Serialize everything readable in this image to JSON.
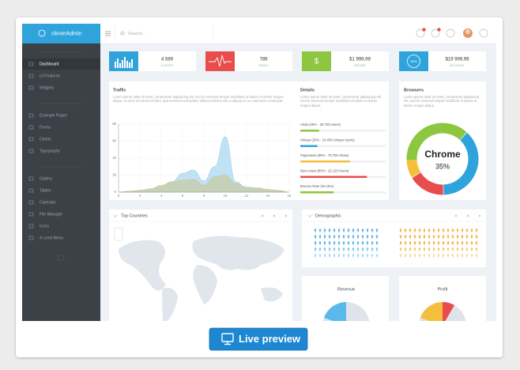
{
  "header": {
    "brand": "cleverAdmin",
    "search": "Search..."
  },
  "sidebar": {
    "groups": [
      [
        "Dashboard",
        "UI Features",
        "Widgets"
      ],
      [
        "Example Pages",
        "Forms",
        "Charts",
        "Typography"
      ],
      [
        "Gallery",
        "Tables",
        "Calendar",
        "File Manager",
        "Icons",
        "4 Level Menu"
      ]
    ]
  },
  "stats": [
    {
      "value": "4 589",
      "label": "CLIENTS"
    },
    {
      "value": "789",
      "label": "DEALS"
    },
    {
      "value": "$1 999,99",
      "label": "INCOME",
      "icon": "$"
    },
    {
      "value": "$19 999,99",
      "label": "ACCOUNT",
      "icon": "50%"
    }
  ],
  "traffic": {
    "title": "Traffic",
    "text": "Lorem ipsum dolor sit amet, consectetur adipisicing elit, sed do eiusmod tempor incididunt ut labore et dolore magna aliqua. Ut enim ad minim veniam, quis nostrud exercitation ullamco laboris nisi ut aliquip ex ea commodo consequat.",
    "chart": {
      "type": "area",
      "x": [
        0,
        1,
        2,
        3,
        4,
        5,
        6,
        7,
        8,
        9,
        10,
        11,
        12,
        13,
        14,
        15,
        16
      ],
      "series": [
        {
          "color": "#9fd3f0",
          "values": [
            0,
            1,
            2,
            3,
            6,
            12,
            22,
            26,
            13,
            30,
            65,
            12,
            5,
            4,
            3,
            2,
            0
          ]
        },
        {
          "color": "#c9c79a",
          "values": [
            0,
            1,
            2,
            4,
            8,
            12,
            14,
            15,
            8,
            18,
            20,
            10,
            6,
            5,
            3,
            2,
            0
          ]
        }
      ],
      "xlim": [
        0,
        16
      ],
      "ylim": [
        0,
        80
      ],
      "xticks": [
        0,
        2,
        4,
        6,
        8,
        10,
        12,
        14,
        16
      ],
      "yticks": [
        0,
        20,
        40,
        60,
        80
      ],
      "grid": true
    }
  },
  "details": {
    "title": "Details",
    "text": "Lorem ipsum dolor sit amet, consectetur adipisicing elit, sed do eiusmod tempor incididunt ut labore et dolore magna aliqua.",
    "rows": [
      "Visits (40% - 29.703 Users)",
      "Unique (20% - 24.093 Unique Users)",
      "Pageviews (60% - 78.706 Views)",
      "New Users (80% - 22.123 Users)",
      "Bounce Rate (40.15%)"
    ]
  },
  "browsers": {
    "title": "Browsers",
    "text": "Lorem ipsum dolor sit amet, consectetur adipisicing elit, sed do eiusmod tempor incididunt ut labore et dolore magna aliqua.",
    "label": "Chrome",
    "value": "35%"
  },
  "panels": {
    "top_countries": "Top Countries",
    "demographic": "Demographic",
    "revenue": "Revenue",
    "profit": "Profit"
  },
  "button": "Live preview"
}
